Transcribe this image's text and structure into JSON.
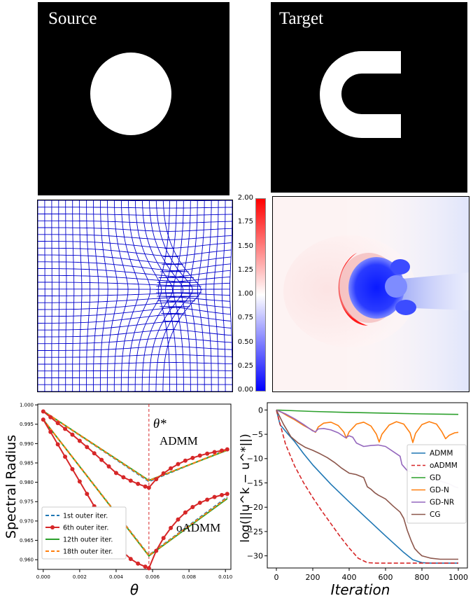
{
  "source_label": "Source",
  "target_label": "Target",
  "colorbar": {
    "ticks": [
      "2.00",
      "1.75",
      "1.50",
      "1.25",
      "1.00",
      "0.75",
      "0.50",
      "0.25",
      "0.00"
    ],
    "colors": {
      "high": "#ff0000",
      "mid": "#ffffff",
      "low": "#0000ff"
    }
  },
  "colors": {
    "grid": "#0000cc",
    "background": "#000000",
    "shape": "#ffffff"
  },
  "chart_data": [
    {
      "type": "line",
      "title": "",
      "xlabel": "θ",
      "ylabel": "Spectral Radius",
      "xlim": [
        -0.0003,
        0.0103
      ],
      "ylim": [
        0.9575,
        1.0002
      ],
      "xticks": [
        "0.000",
        "0.002",
        "0.004",
        "0.006",
        "0.008",
        "0.010"
      ],
      "xtick_values": [
        0,
        0.002,
        0.004,
        0.006,
        0.008,
        0.01
      ],
      "yticks": [
        "1.000",
        "0.995",
        "0.990",
        "0.985",
        "0.980",
        "0.975",
        "0.970",
        "0.965",
        "0.960"
      ],
      "ytick_values": [
        1.0,
        0.995,
        0.99,
        0.985,
        0.98,
        0.975,
        0.97,
        0.965,
        0.96
      ],
      "vline": {
        "x": 0.0058,
        "label": "θ*"
      },
      "annotations": [
        "ADMM",
        "oADMM"
      ],
      "legend": [
        "1st outer iter.",
        "6th outer iter.",
        "12th outer iter.",
        "18th outer iter."
      ],
      "series": [
        {
          "name": "1st outer iter. (ADMM)",
          "color": "#1f77b4",
          "dash": true,
          "marker": false,
          "x": [
            0,
            0.0058,
            0.0101
          ],
          "y": [
            0.9984,
            0.9802,
            0.9885
          ]
        },
        {
          "name": "12th outer iter. (ADMM)",
          "color": "#2ca02c",
          "dash": false,
          "marker": false,
          "x": [
            0,
            0.0058,
            0.0101
          ],
          "y": [
            0.9984,
            0.9805,
            0.9883
          ]
        },
        {
          "name": "18th outer iter. (ADMM)",
          "color": "#ff7f0e",
          "dash": true,
          "marker": false,
          "x": [
            0,
            0.0058,
            0.0101
          ],
          "y": [
            0.9984,
            0.9804,
            0.9884
          ]
        },
        {
          "name": "6th outer iter. (ADMM)",
          "color": "#d62728",
          "dash": false,
          "marker": true,
          "x": [
            0.0,
            0.0004,
            0.0008,
            0.0012,
            0.0016,
            0.002,
            0.0024,
            0.0028,
            0.0032,
            0.0036,
            0.004,
            0.0044,
            0.0048,
            0.0052,
            0.0056,
            0.0058,
            0.0062,
            0.0066,
            0.007,
            0.0074,
            0.0078,
            0.0082,
            0.0086,
            0.009,
            0.0094,
            0.0098,
            0.0101
          ],
          "y": [
            0.9983,
            0.9968,
            0.9953,
            0.9938,
            0.9923,
            0.9907,
            0.9891,
            0.9875,
            0.9858,
            0.9841,
            0.9824,
            0.9813,
            0.9804,
            0.9796,
            0.9789,
            0.9786,
            0.9808,
            0.9823,
            0.9836,
            0.9847,
            0.9856,
            0.9863,
            0.9869,
            0.9874,
            0.9878,
            0.9882,
            0.9885
          ]
        },
        {
          "name": "1st outer iter. (oADMM)",
          "color": "#1f77b4",
          "dash": true,
          "marker": false,
          "x": [
            0,
            0.0058,
            0.0101
          ],
          "y": [
            0.9962,
            0.9612,
            0.9762
          ]
        },
        {
          "name": "12th outer iter. (oADMM)",
          "color": "#2ca02c",
          "dash": false,
          "marker": false,
          "x": [
            0,
            0.0058,
            0.0101
          ],
          "y": [
            0.9962,
            0.961,
            0.9758
          ]
        },
        {
          "name": "18th outer iter. (oADMM)",
          "color": "#ff7f0e",
          "dash": true,
          "marker": false,
          "x": [
            0,
            0.0058,
            0.0101
          ],
          "y": [
            0.9962,
            0.9611,
            0.976
          ]
        },
        {
          "name": "6th outer iter. (oADMM)",
          "color": "#d62728",
          "dash": false,
          "marker": true,
          "x": [
            0.0,
            0.0004,
            0.0008,
            0.0012,
            0.0016,
            0.002,
            0.0024,
            0.0028,
            0.0032,
            0.0036,
            0.004,
            0.0044,
            0.0048,
            0.0052,
            0.0056,
            0.0058,
            0.0062,
            0.0066,
            0.007,
            0.0074,
            0.0078,
            0.0082,
            0.0086,
            0.009,
            0.0094,
            0.0098,
            0.0101
          ],
          "y": [
            0.9962,
            0.993,
            0.9898,
            0.9866,
            0.9834,
            0.9802,
            0.977,
            0.9738,
            0.9706,
            0.9674,
            0.9642,
            0.9619,
            0.9602,
            0.959,
            0.9582,
            0.9578,
            0.9623,
            0.9656,
            0.9682,
            0.9704,
            0.9722,
            0.9736,
            0.9747,
            0.9755,
            0.9762,
            0.9767,
            0.977
          ]
        }
      ]
    },
    {
      "type": "line",
      "title": "",
      "xlabel": "Iteration",
      "ylabel": "log(||u^k − u^*||)",
      "xlim": [
        -50,
        1050
      ],
      "ylim": [
        -32.5,
        1.5
      ],
      "xticks": [
        "0",
        "200",
        "400",
        "600",
        "800",
        "1000"
      ],
      "xtick_values": [
        0,
        200,
        400,
        600,
        800,
        1000
      ],
      "yticks": [
        "0",
        "−5",
        "−10",
        "−15",
        "−20",
        "−25",
        "−30"
      ],
      "ytick_values": [
        0,
        -5,
        -10,
        -15,
        -20,
        -25,
        -30
      ],
      "legend": [
        "ADMM",
        "oADMM",
        "GD",
        "GD-N",
        "GD-NR",
        "CG"
      ],
      "series": [
        {
          "name": "ADMM",
          "color": "#1f77b4",
          "dash": false,
          "x": [
            0,
            20,
            60,
            100,
            150,
            200,
            300,
            400,
            500,
            600,
            700,
            750,
            800,
            850,
            900,
            1000
          ],
          "y": [
            0,
            -3.0,
            -4.8,
            -6.5,
            -9.0,
            -11.3,
            -15.3,
            -18.9,
            -22.4,
            -25.9,
            -29.3,
            -30.8,
            -31.4,
            -31.5,
            -31.5,
            -31.5
          ]
        },
        {
          "name": "oADMM",
          "color": "#d62728",
          "dash": true,
          "x": [
            0,
            50,
            100,
            150,
            200,
            250,
            300,
            350,
            400,
            450,
            500,
            550,
            600,
            800,
            1000
          ],
          "y": [
            0,
            -7.0,
            -11.5,
            -15.0,
            -18.0,
            -20.8,
            -23.4,
            -26.0,
            -28.4,
            -30.5,
            -31.4,
            -31.5,
            -31.5,
            -31.5,
            -31.5
          ]
        },
        {
          "name": "GD",
          "color": "#2ca02c",
          "dash": false,
          "x": [
            0,
            100,
            200,
            400,
            600,
            800,
            1000
          ],
          "y": [
            0,
            -0.15,
            -0.3,
            -0.5,
            -0.65,
            -0.8,
            -0.9
          ]
        },
        {
          "name": "GD-N",
          "color": "#ff7f0e",
          "dash": false,
          "x": [
            0,
            30,
            60,
            100,
            150,
            200,
            215,
            230,
            260,
            300,
            340,
            370,
            385,
            400,
            440,
            480,
            520,
            550,
            565,
            580,
            620,
            660,
            700,
            735,
            750,
            765,
            800,
            840,
            880,
            910,
            930,
            950,
            980,
            1000
          ],
          "y": [
            0,
            -0.5,
            -1.2,
            -2.0,
            -3.2,
            -4.2,
            -4.6,
            -3.5,
            -2.7,
            -2.5,
            -3.2,
            -4.5,
            -5.8,
            -4.5,
            -2.9,
            -2.5,
            -3.3,
            -5.0,
            -6.6,
            -5.0,
            -3.1,
            -2.4,
            -2.9,
            -4.7,
            -6.7,
            -4.8,
            -3.0,
            -2.4,
            -2.9,
            -4.5,
            -5.9,
            -5.2,
            -4.7,
            -4.6
          ]
        },
        {
          "name": "GD-NR",
          "color": "#9467bd",
          "dash": false,
          "x": [
            0,
            50,
            100,
            150,
            200,
            215,
            230,
            260,
            300,
            340,
            380,
            400,
            420,
            440,
            480,
            520,
            560,
            600,
            640,
            680,
            690,
            720,
            760,
            800,
            850,
            900,
            950,
            980,
            1000
          ],
          "y": [
            0,
            -0.8,
            -1.8,
            -3.0,
            -4.3,
            -4.5,
            -3.9,
            -3.8,
            -4.1,
            -4.7,
            -5.7,
            -5.3,
            -5.6,
            -6.8,
            -7.5,
            -7.3,
            -7.2,
            -7.5,
            -8.5,
            -9.5,
            -11.2,
            -12.5,
            -12.9,
            -13.3,
            -14.0,
            -14.6,
            -15.2,
            -15.8,
            -16.0
          ]
        },
        {
          "name": "CG",
          "color": "#8c564b",
          "dash": false,
          "x": [
            0,
            40,
            80,
            120,
            160,
            200,
            240,
            280,
            320,
            360,
            400,
            440,
            480,
            500,
            520,
            540,
            560,
            600,
            640,
            680,
            700,
            720,
            740,
            760,
            780,
            800,
            850,
            900,
            1000
          ],
          "y": [
            0,
            -3.0,
            -5.5,
            -6.8,
            -7.7,
            -8.3,
            -9.0,
            -9.8,
            -10.8,
            -12.0,
            -13.0,
            -13.3,
            -13.9,
            -15.8,
            -16.3,
            -17.0,
            -17.5,
            -18.3,
            -19.7,
            -21.0,
            -22.3,
            -24.8,
            -26.8,
            -28.5,
            -29.3,
            -30.0,
            -30.5,
            -30.7,
            -30.7
          ]
        }
      ]
    }
  ]
}
